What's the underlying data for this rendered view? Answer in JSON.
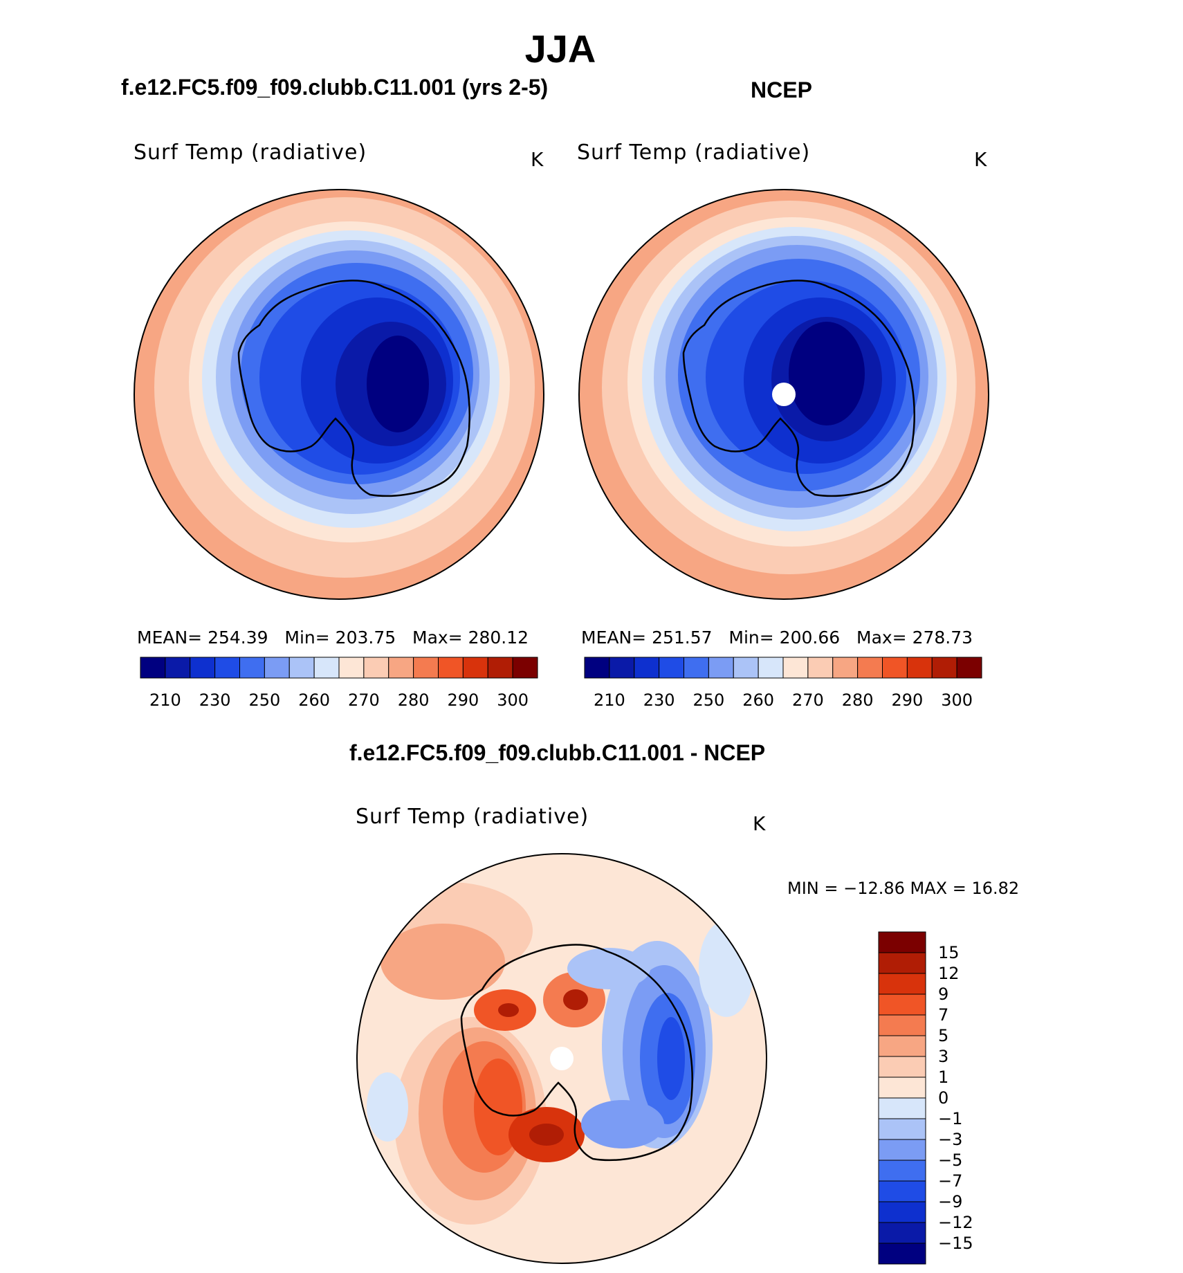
{
  "main_title": "JJA",
  "panels": {
    "case": {
      "title": "f.e12.FC5.f09_f09.clubb.C11.001 (yrs 2-5)",
      "variable": "Surf Temp (radiative)",
      "units": "K",
      "stats": {
        "mean_label": "MEAN=",
        "mean": "254.39",
        "min_label": "Min=",
        "min": "203.75",
        "max_label": "Max=",
        "max": "280.12"
      }
    },
    "obs": {
      "title": "NCEP",
      "variable": "Surf Temp (radiative)",
      "units": "K",
      "stats": {
        "mean_label": "MEAN=",
        "mean": "251.57",
        "min_label": "Min=",
        "min": "200.66",
        "max_label": "Max=",
        "max": "278.73"
      }
    },
    "diff": {
      "title": "f.e12.FC5.f09_f09.clubb.C11.001 - NCEP",
      "variable": "Surf Temp (radiative)",
      "units": "K",
      "stats_text": "MIN = −12.86 MAX =   16.82"
    }
  },
  "colorbar_abs": {
    "colors": [
      "#000080",
      "#0a1aa8",
      "#0e30cf",
      "#1f4ce6",
      "#3f6ef0",
      "#7b9cf4",
      "#abc3f7",
      "#d7e6fa",
      "#fde6d6",
      "#fbccb4",
      "#f7a683",
      "#f47b50",
      "#f05526",
      "#d8330c",
      "#b01d05",
      "#7b0000"
    ],
    "labels": [
      "210",
      "230",
      "250",
      "260",
      "270",
      "280",
      "290",
      "300"
    ]
  },
  "colorbar_diff": {
    "colors": [
      "#7b0000",
      "#b01d05",
      "#d8330c",
      "#f05526",
      "#f47b50",
      "#f7a683",
      "#fbccb4",
      "#fde6d6",
      "#d7e6fa",
      "#abc3f7",
      "#7b9cf4",
      "#3f6ef0",
      "#1f4ce6",
      "#0e30cf",
      "#0a1aa8",
      "#000080"
    ],
    "labels": [
      "15",
      "12",
      "9",
      "7",
      "5",
      "3",
      "1",
      "0",
      "−1",
      "−3",
      "−5",
      "−7",
      "−9",
      "−12",
      "−15"
    ]
  }
}
